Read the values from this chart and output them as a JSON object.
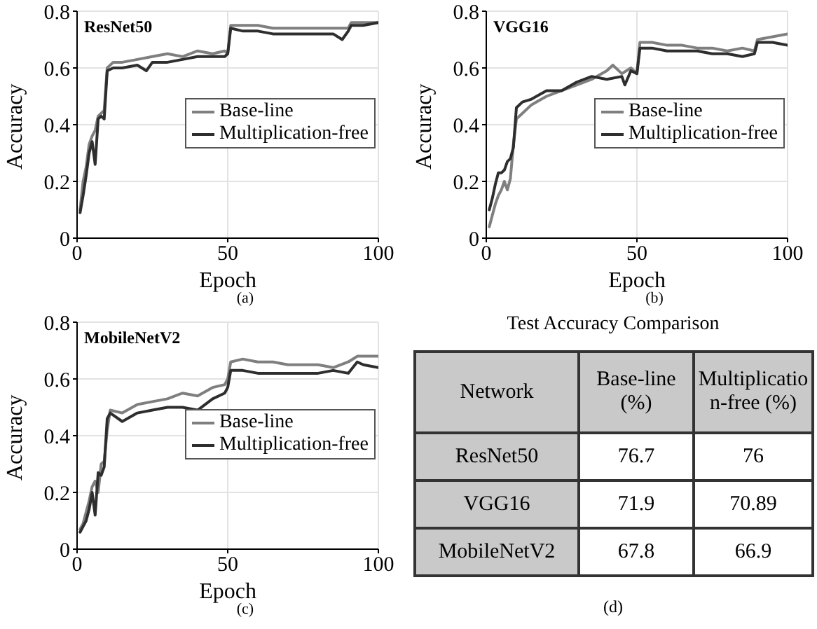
{
  "chart_data": [
    {
      "type": "line",
      "title": "ResNet50",
      "xlabel": "Epoch",
      "ylabel": "Accuracy",
      "annotations": [
        "(a)"
      ],
      "xlim": [
        0,
        100
      ],
      "xticks": [
        0,
        50,
        100
      ],
      "ylim": [
        0,
        0.8
      ],
      "yticks": [
        0,
        0.2,
        0.4,
        0.6,
        0.8
      ],
      "grid": true,
      "legend": "right",
      "line_style": "solid",
      "series": [
        {
          "name": "Base-line",
          "color": "#7f7f7f",
          "x": [
            1,
            2,
            3,
            4,
            5,
            6,
            7,
            8,
            9,
            10,
            12,
            15,
            20,
            25,
            30,
            35,
            40,
            45,
            49,
            50,
            51,
            55,
            60,
            65,
            70,
            75,
            80,
            85,
            88,
            90,
            91,
            95,
            100
          ],
          "values": [
            0.1,
            0.2,
            0.25,
            0.33,
            0.36,
            0.38,
            0.43,
            0.44,
            0.45,
            0.6,
            0.62,
            0.62,
            0.63,
            0.64,
            0.65,
            0.64,
            0.66,
            0.65,
            0.66,
            0.65,
            0.75,
            0.75,
            0.75,
            0.74,
            0.74,
            0.74,
            0.74,
            0.74,
            0.74,
            0.74,
            0.76,
            0.76,
            0.76
          ]
        },
        {
          "name": "Multiplication-free",
          "color": "#2e2e2e",
          "x": [
            1,
            2,
            3,
            4,
            5,
            6,
            7,
            8,
            9,
            10,
            12,
            15,
            20,
            23,
            25,
            30,
            35,
            40,
            45,
            49,
            50,
            51,
            55,
            60,
            65,
            70,
            75,
            80,
            85,
            88,
            90,
            91,
            95,
            100
          ],
          "values": [
            0.09,
            0.15,
            0.22,
            0.3,
            0.34,
            0.26,
            0.42,
            0.43,
            0.42,
            0.59,
            0.6,
            0.6,
            0.61,
            0.59,
            0.62,
            0.62,
            0.63,
            0.64,
            0.64,
            0.64,
            0.65,
            0.74,
            0.73,
            0.73,
            0.72,
            0.72,
            0.72,
            0.72,
            0.72,
            0.7,
            0.73,
            0.75,
            0.75,
            0.76
          ]
        }
      ]
    },
    {
      "type": "line",
      "title": "VGG16",
      "xlabel": "Epoch",
      "ylabel": "Accuracy",
      "annotations": [
        "(b)"
      ],
      "xlim": [
        0,
        100
      ],
      "xticks": [
        0,
        50,
        100
      ],
      "ylim": [
        0,
        0.8
      ],
      "yticks": [
        0,
        0.2,
        0.4,
        0.6,
        0.8
      ],
      "grid": true,
      "legend": "right",
      "line_style": "solid",
      "series": [
        {
          "name": "Base-line",
          "color": "#7f7f7f",
          "x": [
            1,
            2,
            3,
            4,
            5,
            6,
            7,
            8,
            9,
            10,
            12,
            15,
            20,
            25,
            30,
            35,
            40,
            42,
            45,
            48,
            50,
            51,
            55,
            60,
            65,
            70,
            75,
            80,
            85,
            89,
            90,
            95,
            100
          ],
          "values": [
            0.04,
            0.08,
            0.12,
            0.15,
            0.17,
            0.2,
            0.17,
            0.21,
            0.33,
            0.42,
            0.44,
            0.47,
            0.5,
            0.52,
            0.54,
            0.56,
            0.59,
            0.61,
            0.58,
            0.6,
            0.58,
            0.69,
            0.69,
            0.68,
            0.68,
            0.67,
            0.67,
            0.66,
            0.67,
            0.66,
            0.7,
            0.71,
            0.72
          ]
        },
        {
          "name": "Multiplication-free",
          "color": "#2e2e2e",
          "x": [
            1,
            2,
            3,
            4,
            5,
            6,
            7,
            8,
            9,
            10,
            12,
            15,
            20,
            25,
            30,
            35,
            40,
            45,
            46,
            48,
            50,
            51,
            55,
            60,
            65,
            70,
            75,
            80,
            85,
            89,
            90,
            95,
            100
          ],
          "values": [
            0.1,
            0.14,
            0.19,
            0.23,
            0.23,
            0.24,
            0.27,
            0.28,
            0.32,
            0.46,
            0.48,
            0.49,
            0.52,
            0.52,
            0.55,
            0.57,
            0.56,
            0.57,
            0.54,
            0.59,
            0.58,
            0.67,
            0.67,
            0.66,
            0.66,
            0.66,
            0.65,
            0.65,
            0.64,
            0.65,
            0.69,
            0.69,
            0.68
          ]
        }
      ]
    },
    {
      "type": "line",
      "title": "MobileNetV2",
      "xlabel": "Epoch",
      "ylabel": "Accuracy",
      "annotations": [
        "(c)"
      ],
      "xlim": [
        0,
        100
      ],
      "xticks": [
        0,
        50,
        100
      ],
      "ylim": [
        0,
        0.8
      ],
      "yticks": [
        0,
        0.2,
        0.4,
        0.6,
        0.8
      ],
      "grid": true,
      "legend": "right",
      "line_style": "solid",
      "series": [
        {
          "name": "Base-line",
          "color": "#7f7f7f",
          "x": [
            1,
            2,
            3,
            4,
            5,
            6,
            7,
            8,
            9,
            10,
            11,
            15,
            20,
            25,
            30,
            35,
            40,
            45,
            49,
            50,
            51,
            55,
            60,
            65,
            70,
            75,
            80,
            85,
            90,
            93,
            95,
            100
          ],
          "values": [
            0.07,
            0.09,
            0.13,
            0.17,
            0.22,
            0.24,
            0.2,
            0.3,
            0.31,
            0.42,
            0.49,
            0.48,
            0.51,
            0.52,
            0.53,
            0.55,
            0.54,
            0.57,
            0.58,
            0.6,
            0.66,
            0.67,
            0.66,
            0.66,
            0.65,
            0.65,
            0.65,
            0.64,
            0.66,
            0.68,
            0.68,
            0.68
          ]
        },
        {
          "name": "Multiplication-free",
          "color": "#2e2e2e",
          "x": [
            1,
            2,
            3,
            4,
            5,
            6,
            7,
            8,
            9,
            10,
            11,
            15,
            20,
            25,
            30,
            35,
            40,
            45,
            49,
            50,
            51,
            55,
            60,
            65,
            70,
            75,
            80,
            85,
            90,
            93,
            95,
            100
          ],
          "values": [
            0.06,
            0.08,
            0.1,
            0.14,
            0.2,
            0.12,
            0.27,
            0.26,
            0.29,
            0.46,
            0.48,
            0.45,
            0.48,
            0.49,
            0.5,
            0.5,
            0.49,
            0.53,
            0.55,
            0.57,
            0.63,
            0.63,
            0.62,
            0.62,
            0.62,
            0.62,
            0.62,
            0.63,
            0.62,
            0.66,
            0.65,
            0.64
          ]
        }
      ]
    },
    {
      "type": "other",
      "title": "Test Accuracy Comparison",
      "xlabel": "Network",
      "annotations": [
        "(d)"
      ],
      "data_labels": true,
      "categories": [
        "ResNet50",
        "VGG16",
        "MobileNetV2"
      ],
      "series": [
        {
          "name": "Base-line (%)",
          "values": [
            76.7,
            71.9,
            67.8
          ]
        },
        {
          "name": "Multiplication-free (%)",
          "values": [
            76,
            70.89,
            66.9
          ]
        }
      ]
    }
  ]
}
